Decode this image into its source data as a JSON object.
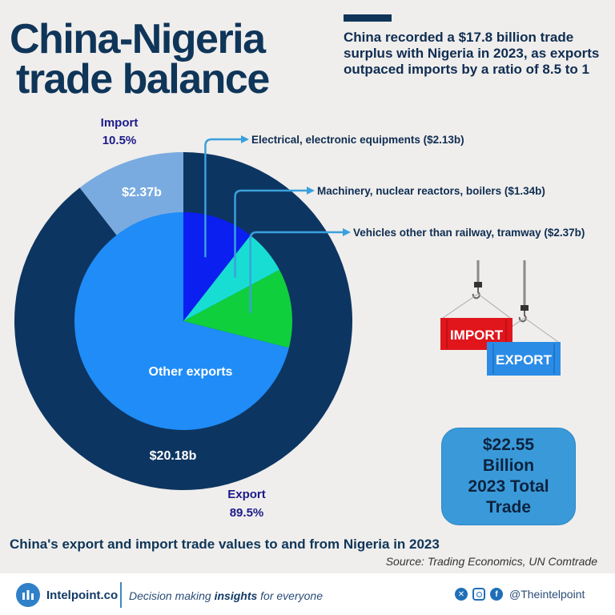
{
  "title_line1": "China-Nigeria",
  "title_line2": "trade balance",
  "subtitle": "China recorded a $17.8 billion trade surplus with Nigeria in 2023, as exports outpaced imports by a ratio of 8.5 to 1",
  "caption": "China's export and import trade values to and from Nigeria in 2023",
  "source": "Source: Trading Economics, UN Comtrade",
  "total": {
    "line1": "$22.55",
    "line2": "Billion",
    "line3": "2023 Total",
    "line4": "Trade"
  },
  "containers": {
    "import_label": "IMPORT",
    "export_label": "EXPORT"
  },
  "footer": {
    "brand": "Intelpoint.co",
    "tagline_pre": "Decision making ",
    "tagline_bold": "insights",
    "tagline_post": " for everyone",
    "handle": "@Theintelpoint"
  },
  "colors": {
    "export": "#0d3561",
    "import": "#79abe0",
    "electrical": "#0a1ff0",
    "machinery": "#18ddd3",
    "vehicles": "#10cf3c",
    "other_exports": "#1f8cf7",
    "arrow": "#3aa0dc",
    "total_box": "#3a9ad9"
  },
  "chart_data": {
    "type": "pie",
    "outer_ring": [
      {
        "name": "Export",
        "value": 20.18,
        "value_label": "$20.18b",
        "share_label": "89.5%",
        "color_key": "export"
      },
      {
        "name": "Import",
        "value": 2.37,
        "value_label": "$2.37b",
        "share_label": "10.5%",
        "color_key": "import"
      }
    ],
    "export_breakdown": [
      {
        "name": "Electrical, electronic equipments ($2.13b)",
        "value": 2.13,
        "color_key": "electrical"
      },
      {
        "name": "Machinery, nuclear reactors, boilers ($1.34b)",
        "value": 1.34,
        "color_key": "machinery"
      },
      {
        "name": "Vehicles other than railway, tramway ($2.37b)",
        "value": 2.37,
        "color_key": "vehicles"
      },
      {
        "name": "Other exports",
        "value": 14.34,
        "color_key": "other_exports"
      }
    ]
  }
}
